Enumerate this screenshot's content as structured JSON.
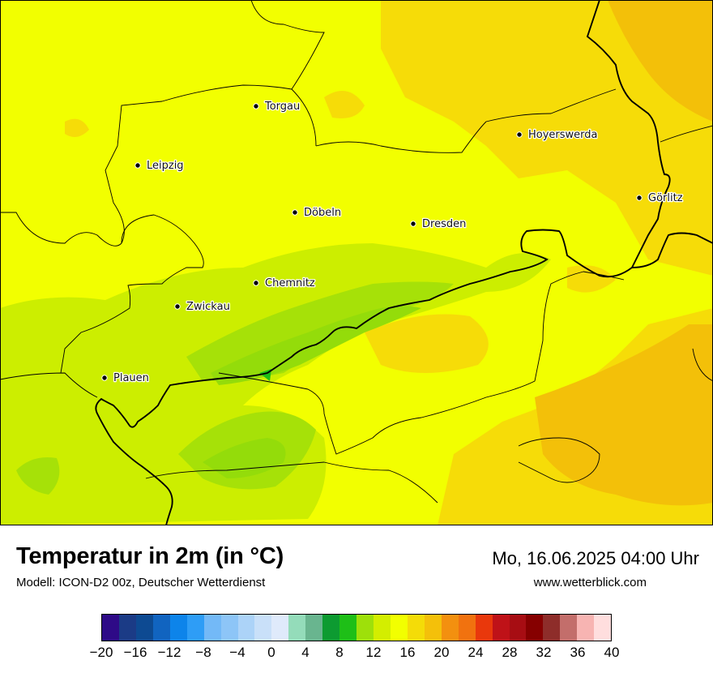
{
  "map": {
    "cities": [
      {
        "name": "Torgau"
      },
      {
        "name": "Hoyerswerda"
      },
      {
        "name": "Leipzig"
      },
      {
        "name": "Görlitz"
      },
      {
        "name": "Döbeln"
      },
      {
        "name": "Dresden"
      },
      {
        "name": "Chemnitz"
      },
      {
        "name": "Zwickau"
      },
      {
        "name": "Plauen"
      }
    ],
    "colors": {
      "base": "#f2ff00",
      "warm": "#f6dc08",
      "warmer": "#f3c009",
      "cool": "#ccee00",
      "cooler": "#a6e108",
      "coolest": "#94dc0a",
      "border_state": "#000000",
      "border_district": "#000000"
    }
  },
  "footer": {
    "title": "Temperatur in 2m (in °C)",
    "subtitle": "Modell: ICON-D2 00z, Deutscher Wetterdienst",
    "datetime": "Mo, 16.06.2025 04:00 Uhr",
    "website": "www.wetterblick.com"
  },
  "colorbar": {
    "colors": [
      "#2e0a87",
      "#1b3b86",
      "#0d4a92",
      "#1164c0",
      "#0d84ea",
      "#2e9df6",
      "#73b9f7",
      "#8dc5f7",
      "#acd3f8",
      "#c9e0f9",
      "#dfeafb",
      "#94dcba",
      "#69b58f",
      "#0d9b31",
      "#1ebf17",
      "#9ee00a",
      "#d3ee00",
      "#f2ff00",
      "#f4dc08",
      "#f4c00a",
      "#f3900f",
      "#f1720f",
      "#e9380c",
      "#bf1218",
      "#a70d13",
      "#860000",
      "#8e2d2a",
      "#c36e6b",
      "#f7b4b2",
      "#ffdede"
    ],
    "tick_labels": [
      "−20",
      "−16",
      "−12",
      "−8",
      "−4",
      "0",
      "4",
      "8",
      "12",
      "16",
      "20",
      "24",
      "28",
      "32",
      "36",
      "40"
    ],
    "min": -20,
    "max": 40
  }
}
